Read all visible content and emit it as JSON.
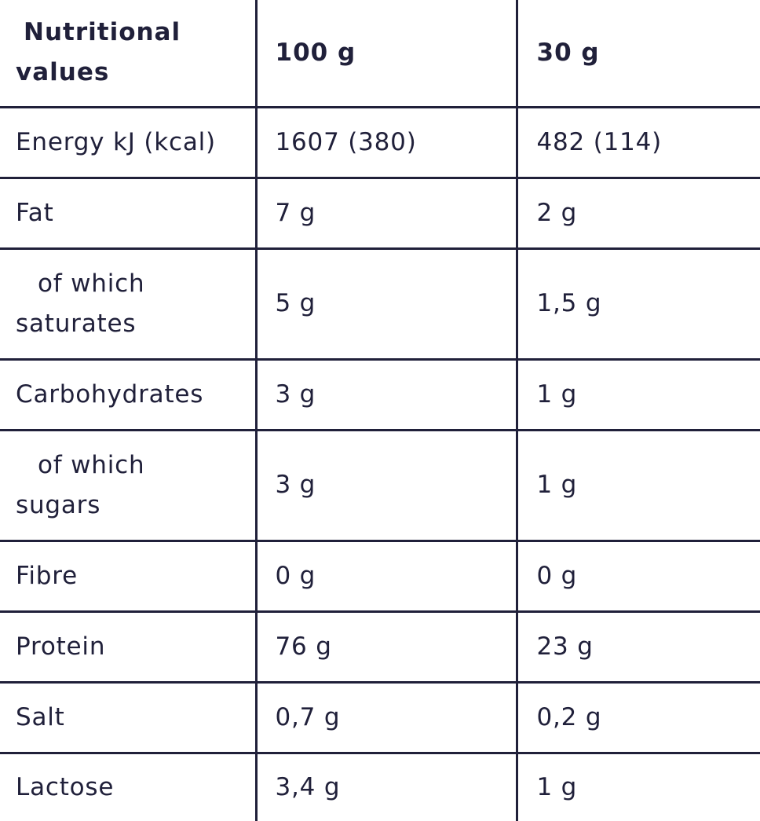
{
  "header": {
    "label_line1": "Nutritional",
    "label_line2": "values",
    "col_100g": "100 g",
    "col_30g": "30 g"
  },
  "rows": [
    {
      "label": "Energy kJ (kcal)",
      "per100": "1607 (380)",
      "per30": "482 (114)"
    },
    {
      "label": "Fat",
      "per100": "7 g",
      "per30": "2 g"
    },
    {
      "label_line1": "of which",
      "label_line2": "saturates",
      "per100": "5 g",
      "per30": "1,5 g"
    },
    {
      "label": "Carbohydrates",
      "per100": "3 g",
      "per30": "1 g"
    },
    {
      "label_line1": "of which",
      "label_line2": "sugars",
      "per100": "3 g",
      "per30": "1 g"
    },
    {
      "label": "Fibre",
      "per100": "0 g",
      "per30": "0 g"
    },
    {
      "label": "Protein",
      "per100": "76 g",
      "per30": "23 g"
    },
    {
      "label": "Salt",
      "per100": "0,7 g",
      "per30": "0,2 g"
    },
    {
      "label": "Lactose",
      "per100": "3,4 g",
      "per30": "1 g"
    }
  ]
}
